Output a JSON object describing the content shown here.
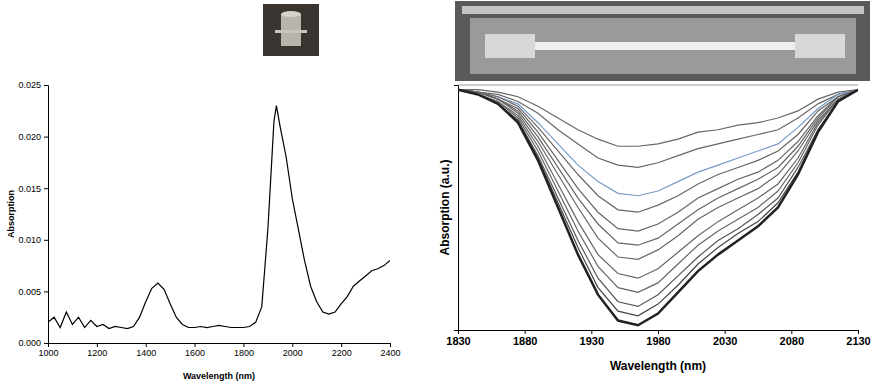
{
  "chart_data": [
    {
      "type": "line",
      "x_label": "Wavelength (nm)",
      "y_label": "Absorption",
      "x": [
        1000,
        1025,
        1050,
        1075,
        1100,
        1125,
        1150,
        1175,
        1200,
        1225,
        1250,
        1275,
        1300,
        1325,
        1350,
        1375,
        1400,
        1425,
        1450,
        1475,
        1500,
        1525,
        1550,
        1575,
        1600,
        1625,
        1650,
        1675,
        1700,
        1725,
        1750,
        1775,
        1800,
        1825,
        1850,
        1875,
        1900,
        1925,
        1935,
        1950,
        1975,
        2000,
        2025,
        2050,
        2075,
        2100,
        2125,
        2150,
        2175,
        2200,
        2225,
        2250,
        2275,
        2300,
        2325,
        2350,
        2375,
        2400
      ],
      "series": [
        {
          "color": "#000000",
          "values": [
            0.002,
            0.0025,
            0.0015,
            0.003,
            0.0018,
            0.0025,
            0.0015,
            0.0022,
            0.0016,
            0.0018,
            0.0014,
            0.0016,
            0.0015,
            0.0014,
            0.0016,
            0.0025,
            0.004,
            0.0053,
            0.0058,
            0.0052,
            0.0038,
            0.0025,
            0.0018,
            0.0015,
            0.0015,
            0.0016,
            0.0015,
            0.0016,
            0.0017,
            0.0016,
            0.0015,
            0.0015,
            0.0015,
            0.0016,
            0.002,
            0.0035,
            0.011,
            0.0215,
            0.023,
            0.021,
            0.018,
            0.014,
            0.011,
            0.008,
            0.0055,
            0.004,
            0.003,
            0.0028,
            0.003,
            0.0038,
            0.0045,
            0.0055,
            0.006,
            0.0065,
            0.007,
            0.0072,
            0.0075,
            0.008
          ]
        }
      ],
      "xlim": [
        1000,
        2400
      ],
      "xticks": [
        1000,
        1200,
        1400,
        1600,
        1800,
        2000,
        2200,
        2400
      ],
      "ylim": [
        0,
        0.025
      ],
      "yticks": [
        {
          "value": 0,
          "label": "0.000"
        },
        {
          "value": 0.005,
          "label": "0.005"
        },
        {
          "value": 0.01,
          "label": "0.010"
        },
        {
          "value": 0.015,
          "label": "0.015"
        },
        {
          "value": 0.02,
          "label": "0.020"
        },
        {
          "value": 0.025,
          "label": "0.025"
        }
      ]
    },
    {
      "type": "line",
      "x_label": "Wavelength (nm)",
      "y_label": "Absorption (a.u.)",
      "tick_labels": "x",
      "x": [
        1830,
        1845,
        1860,
        1875,
        1890,
        1905,
        1920,
        1935,
        1950,
        1965,
        1980,
        1995,
        2010,
        2025,
        2040,
        2055,
        2070,
        2085,
        2100,
        2115,
        2130
      ],
      "series": [
        {
          "color": "#666666",
          "values": [
            0,
            0,
            -0.01,
            -0.03,
            -0.07,
            -0.12,
            -0.17,
            -0.21,
            -0.24,
            -0.24,
            -0.23,
            -0.21,
            -0.18,
            -0.17,
            -0.15,
            -0.14,
            -0.12,
            -0.09,
            -0.04,
            -0.01,
            0
          ]
        },
        {
          "color": "#666666",
          "values": [
            0,
            -0.01,
            -0.02,
            -0.05,
            -0.1,
            -0.17,
            -0.23,
            -0.29,
            -0.32,
            -0.33,
            -0.31,
            -0.28,
            -0.25,
            -0.23,
            -0.21,
            -0.19,
            -0.17,
            -0.12,
            -0.06,
            -0.02,
            0
          ]
        },
        {
          "color": "#7a9cc6",
          "values": [
            0,
            -0.01,
            -0.03,
            -0.06,
            -0.14,
            -0.23,
            -0.32,
            -0.39,
            -0.44,
            -0.45,
            -0.43,
            -0.39,
            -0.35,
            -0.32,
            -0.29,
            -0.26,
            -0.23,
            -0.16,
            -0.08,
            -0.02,
            0
          ]
        },
        {
          "color": "#666666",
          "values": [
            0,
            -0.01,
            -0.03,
            -0.07,
            -0.16,
            -0.26,
            -0.36,
            -0.45,
            -0.51,
            -0.52,
            -0.49,
            -0.45,
            -0.4,
            -0.36,
            -0.33,
            -0.3,
            -0.26,
            -0.19,
            -0.09,
            -0.03,
            0
          ]
        },
        {
          "color": "#666666",
          "values": [
            0,
            -0.01,
            -0.04,
            -0.08,
            -0.18,
            -0.3,
            -0.42,
            -0.52,
            -0.59,
            -0.6,
            -0.57,
            -0.52,
            -0.46,
            -0.42,
            -0.38,
            -0.35,
            -0.3,
            -0.22,
            -0.11,
            -0.03,
            0
          ]
        },
        {
          "color": "#666666",
          "values": [
            0,
            -0.01,
            -0.04,
            -0.09,
            -0.2,
            -0.33,
            -0.46,
            -0.57,
            -0.65,
            -0.66,
            -0.63,
            -0.57,
            -0.51,
            -0.46,
            -0.42,
            -0.38,
            -0.33,
            -0.24,
            -0.12,
            -0.03,
            0
          ]
        },
        {
          "color": "#666666",
          "values": [
            0,
            -0.01,
            -0.04,
            -0.1,
            -0.22,
            -0.36,
            -0.5,
            -0.63,
            -0.71,
            -0.72,
            -0.68,
            -0.62,
            -0.55,
            -0.5,
            -0.46,
            -0.42,
            -0.36,
            -0.26,
            -0.13,
            -0.04,
            0
          ]
        },
        {
          "color": "#666666",
          "values": [
            0,
            -0.02,
            -0.05,
            -0.11,
            -0.24,
            -0.4,
            -0.56,
            -0.7,
            -0.78,
            -0.8,
            -0.76,
            -0.69,
            -0.62,
            -0.56,
            -0.51,
            -0.46,
            -0.4,
            -0.29,
            -0.14,
            -0.04,
            0
          ]
        },
        {
          "color": "#666666",
          "values": [
            0,
            -0.02,
            -0.05,
            -0.12,
            -0.26,
            -0.43,
            -0.6,
            -0.75,
            -0.84,
            -0.86,
            -0.82,
            -0.74,
            -0.66,
            -0.6,
            -0.55,
            -0.5,
            -0.43,
            -0.31,
            -0.15,
            -0.04,
            0
          ]
        },
        {
          "color": "#555555",
          "values": [
            0,
            -0.02,
            -0.06,
            -0.13,
            -0.28,
            -0.46,
            -0.64,
            -0.8,
            -0.9,
            -0.92,
            -0.87,
            -0.79,
            -0.71,
            -0.64,
            -0.59,
            -0.53,
            -0.46,
            -0.33,
            -0.17,
            -0.05,
            0
          ]
        },
        {
          "color": "#444444",
          "values": [
            0,
            -0.02,
            -0.06,
            -0.13,
            -0.29,
            -0.48,
            -0.67,
            -0.84,
            -0.94,
            -0.96,
            -0.91,
            -0.83,
            -0.74,
            -0.67,
            -0.61,
            -0.56,
            -0.48,
            -0.35,
            -0.17,
            -0.05,
            0
          ]
        },
        {
          "color": "#222222",
          "values": [
            0,
            -0.02,
            -0.06,
            -0.14,
            -0.3,
            -0.5,
            -0.7,
            -0.87,
            -0.98,
            -1.0,
            -0.95,
            -0.86,
            -0.77,
            -0.7,
            -0.64,
            -0.58,
            -0.5,
            -0.36,
            -0.18,
            -0.05,
            0
          ]
        }
      ],
      "xlim": [
        1830,
        2130
      ],
      "xticks": [
        1830,
        1880,
        1930,
        1980,
        2030,
        2080,
        2130
      ],
      "ylim": [
        -1.02,
        0.02
      ]
    }
  ]
}
